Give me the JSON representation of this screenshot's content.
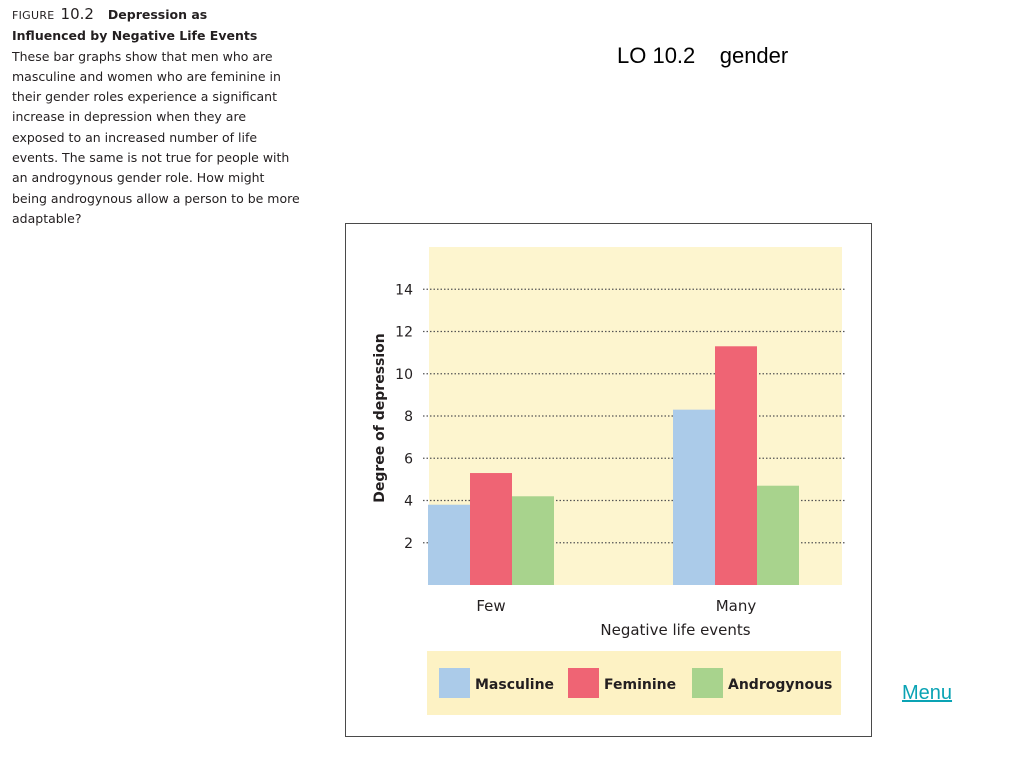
{
  "caption": {
    "figure_label": "FIGURE",
    "figure_number": "10.2",
    "title_part1": "Depression as",
    "title_part2": "Influenced by Negative Life Events",
    "body": "These bar graphs show that men who are masculine and women who are feminine in their gender roles experience a significant increase in depression when they are exposed to an increased number of life events. The same is not true for people with an androgynous gender role. How might being androgynous allow a person to be more adaptable?"
  },
  "slide_title": "LO 10.2    gender",
  "menu_link": "Menu",
  "chart_data": {
    "type": "bar",
    "categories": [
      "Few",
      "Many"
    ],
    "series": [
      {
        "name": "Masculine",
        "values": [
          3.8,
          8.3
        ],
        "color": "#abcbe9"
      },
      {
        "name": "Feminine",
        "values": [
          5.3,
          11.3
        ],
        "color": "#ef6474"
      },
      {
        "name": "Androgynous",
        "values": [
          4.2,
          4.7
        ],
        "color": "#a8d38d"
      }
    ],
    "xlabel": "Negative life events",
    "ylabel": "Degree of depression",
    "ylim": [
      0,
      16
    ],
    "yticks": [
      2,
      4,
      6,
      8,
      10,
      12,
      14
    ],
    "grid": true,
    "legend_position": "bottom",
    "plot_background": "#fdf5cf",
    "legend_background": "#fdf2c4"
  }
}
